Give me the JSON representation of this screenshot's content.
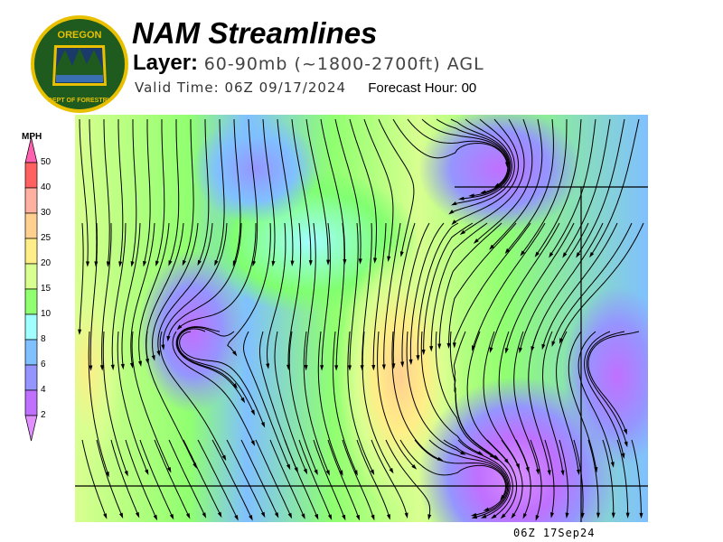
{
  "header": {
    "title": "NAM Streamlines",
    "layer_label": "Layer:",
    "layer_value": "60-90mb (~1800-2700ft) AGL",
    "valid_time": "Valid Time: 06Z 09/17/2024",
    "forecast_hour": "Forecast Hour: 00"
  },
  "logo": {
    "top_text": "OREGON",
    "bottom_text": "DEPARTMENT OF FORESTRY",
    "colors": {
      "ring": "#1f5a1f",
      "border": "#e8c000",
      "sky": "#1a3a6a"
    }
  },
  "legend": {
    "unit": "MPH",
    "ticks": [
      "50",
      "40",
      "30",
      "25",
      "20",
      "15",
      "10",
      "8",
      "6",
      "4",
      "2"
    ],
    "colors": [
      "#ff60b0",
      "#ff6060",
      "#ffb0a0",
      "#ffd090",
      "#ffee88",
      "#d8ff90",
      "#90ff70",
      "#a0ffff",
      "#80c0ff",
      "#9595ff",
      "#c070ff",
      "#e090ff"
    ]
  },
  "map": {
    "timestamp": "06Z 17Sep24"
  }
}
